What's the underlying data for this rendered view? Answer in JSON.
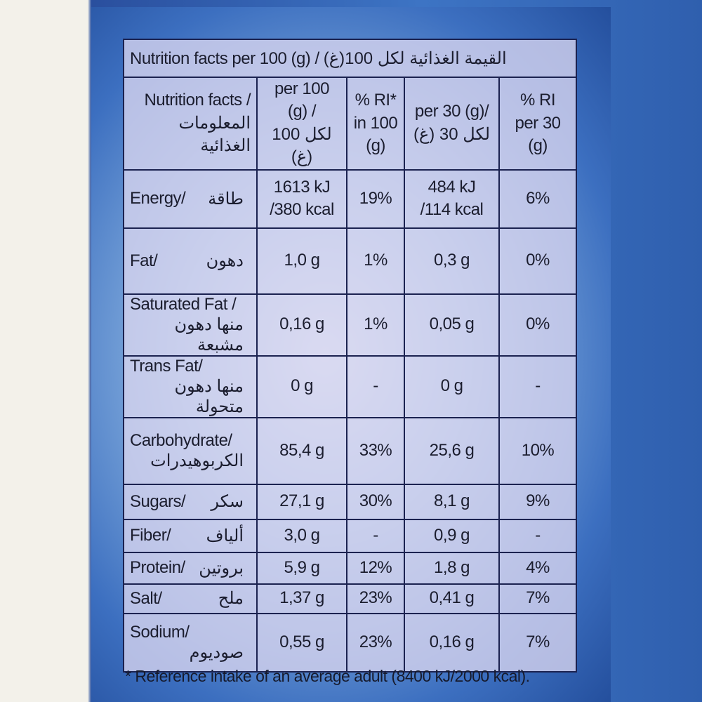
{
  "table": {
    "title": "Nutrition facts per 100 (g) / القيمة الغذائية لكل 100(غ)",
    "header": [
      [
        "Nutrition facts /",
        "المعلومات",
        "الغذائية"
      ],
      [
        "per 100 (g) /",
        "لكل 100 (غ)"
      ],
      [
        "% RI*",
        "in 100",
        "(g)"
      ],
      [
        "per 30 (g)/",
        "لكل 30 (غ)"
      ],
      [
        "% RI",
        "per 30",
        "(g)"
      ]
    ],
    "rows": [
      {
        "en": "Energy/",
        "ar": "طاقة",
        "cells": [
          [
            "1613 kJ",
            "/380 kcal"
          ],
          [
            "19%"
          ],
          [
            "484 kJ",
            "/114 kcal"
          ],
          [
            "6%"
          ]
        ]
      },
      {
        "en": "Fat/",
        "ar": "دهون",
        "cells": [
          [
            "1,0 g"
          ],
          [
            "1%"
          ],
          [
            "0,3 g"
          ],
          [
            "0%"
          ]
        ]
      },
      {
        "en": "Saturated Fat /",
        "ar": "منها دهون مشبعة",
        "cells": [
          [
            "0,16 g"
          ],
          [
            "1%"
          ],
          [
            "0,05 g"
          ],
          [
            "0%"
          ]
        ]
      },
      {
        "en": "Trans Fat/",
        "ar": "منها دهون متحولة",
        "cells": [
          [
            "0 g"
          ],
          [
            "-"
          ],
          [
            "0 g"
          ],
          [
            "-"
          ]
        ]
      },
      {
        "en": "Carbohydrate/",
        "ar": "الكربوهيدرات",
        "cells": [
          [
            "85,4 g"
          ],
          [
            "33%"
          ],
          [
            "25,6 g"
          ],
          [
            "10%"
          ]
        ]
      },
      {
        "en": "Sugars/",
        "ar": "سكر",
        "cells": [
          [
            "27,1 g"
          ],
          [
            "30%"
          ],
          [
            "8,1 g"
          ],
          [
            "9%"
          ]
        ]
      },
      {
        "en": "Fiber/",
        "ar": "ألياف",
        "cells": [
          [
            "3,0 g"
          ],
          [
            "-"
          ],
          [
            "0,9 g"
          ],
          [
            "-"
          ]
        ]
      },
      {
        "en": "Protein/",
        "ar": "بروتين",
        "cells": [
          [
            "5,9 g"
          ],
          [
            "12%"
          ],
          [
            "1,8 g"
          ],
          [
            "4%"
          ]
        ]
      },
      {
        "en": "Salt/",
        "ar": "ملح",
        "cells": [
          [
            "1,37 g"
          ],
          [
            "23%"
          ],
          [
            "0,41 g"
          ],
          [
            "7%"
          ]
        ]
      },
      {
        "en": "Sodium/",
        "ar": "صوديوم",
        "cells": [
          [
            "0,55 g"
          ],
          [
            "23%"
          ],
          [
            "0,16 g"
          ],
          [
            "7%"
          ]
        ]
      }
    ],
    "footnote": "* Reference intake of an average adult (8400 kJ/2000 kcal)."
  }
}
